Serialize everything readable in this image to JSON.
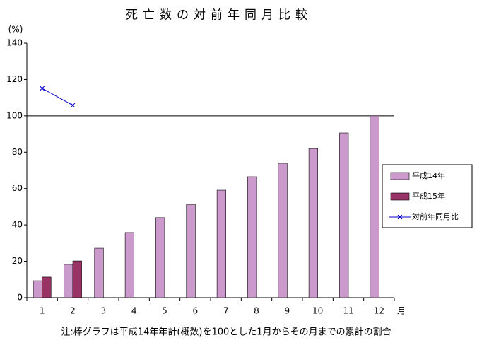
{
  "chart_data": {
    "type": "bar",
    "title": "死亡数の対前年同月比較",
    "y_unit": "(%)",
    "x_unit": "月",
    "note": "注:棒グラフは平成14年年計(概数)を100とした1月からその月までの累計の割合",
    "categories": [
      "1",
      "2",
      "3",
      "4",
      "5",
      "6",
      "7",
      "8",
      "9",
      "10",
      "11",
      "12"
    ],
    "series": [
      {
        "name": "平成14年",
        "type": "bar",
        "color": "#cc99cc",
        "values": [
          9.3,
          18.3,
          27.2,
          35.8,
          44,
          51.3,
          59.1,
          66.5,
          73.9,
          82,
          90.6,
          100
        ]
      },
      {
        "name": "平成15年",
        "type": "bar",
        "color": "#993366",
        "values": [
          11.3,
          20.2,
          null,
          null,
          null,
          null,
          null,
          null,
          null,
          null,
          null,
          null
        ]
      },
      {
        "name": "対前年同月比",
        "type": "line",
        "color": "#0000cc",
        "values": [
          115.1,
          105.8,
          null,
          null,
          null,
          null,
          null,
          null,
          null,
          null,
          null,
          null
        ]
      }
    ],
    "ylim": [
      0,
      140
    ],
    "yticks": [
      0,
      20,
      40,
      60,
      80,
      100,
      120,
      140
    ],
    "ref_line": 100,
    "legend": "right"
  }
}
